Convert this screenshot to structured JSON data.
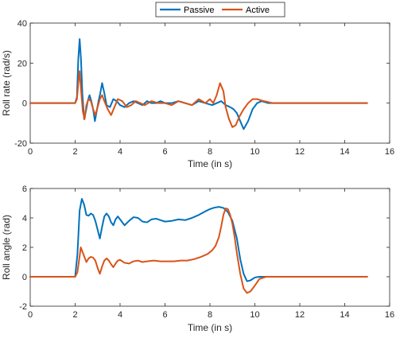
{
  "legend": {
    "placement": "top-center",
    "entries": [
      {
        "label": "Passive",
        "color": "#0072BD"
      },
      {
        "label": "Active",
        "color": "#D95319"
      }
    ]
  },
  "chart_data": [
    {
      "type": "line",
      "xlabel": "Time (in s)",
      "ylabel": "Roll rate (rad/s)",
      "xlim": [
        0,
        16
      ],
      "ylim": [
        -20,
        40
      ],
      "xticks": [
        0,
        2,
        4,
        6,
        8,
        10,
        12,
        14,
        16
      ],
      "yticks": [
        -20,
        0,
        20,
        40
      ],
      "grid": false,
      "series": [
        {
          "name": "Passive",
          "color": "#0072BD",
          "x": [
            0,
            2.0,
            2.08,
            2.14,
            2.2,
            2.26,
            2.32,
            2.4,
            2.48,
            2.56,
            2.64,
            2.72,
            2.8,
            2.88,
            2.96,
            3.04,
            3.12,
            3.2,
            3.3,
            3.4,
            3.55,
            3.7,
            3.85,
            4.0,
            4.2,
            4.4,
            4.6,
            4.8,
            5.0,
            5.2,
            5.4,
            5.6,
            5.8,
            6.0,
            6.3,
            6.6,
            6.9,
            7.2,
            7.5,
            7.8,
            8.1,
            8.3,
            8.5,
            8.7,
            8.9,
            9.05,
            9.2,
            9.35,
            9.5,
            9.7,
            9.9,
            10.1,
            10.3,
            10.6,
            11.0,
            12.0,
            13.0,
            14.0,
            15.0
          ],
          "y": [
            0,
            0,
            3,
            22,
            32,
            22,
            5,
            -8,
            -4,
            1,
            4,
            1,
            -3,
            -9,
            -4,
            1,
            5,
            10,
            5,
            -1,
            -2,
            2,
            1,
            -1,
            -2,
            0,
            1,
            0,
            -1,
            1,
            0,
            0,
            1,
            0,
            0,
            1,
            0,
            -1,
            1,
            0,
            -1,
            0,
            1,
            -1,
            -2,
            -3,
            -5,
            -9,
            -13,
            -9,
            -3,
            0,
            1,
            0,
            0,
            0,
            0,
            0,
            0
          ]
        },
        {
          "name": "Active",
          "color": "#D95319",
          "x": [
            0,
            2.0,
            2.08,
            2.14,
            2.2,
            2.26,
            2.34,
            2.42,
            2.5,
            2.6,
            2.7,
            2.8,
            2.9,
            3.0,
            3.1,
            3.2,
            3.3,
            3.45,
            3.6,
            3.75,
            3.9,
            4.1,
            4.3,
            4.5,
            4.7,
            4.9,
            5.1,
            5.4,
            5.7,
            6.0,
            6.3,
            6.6,
            6.9,
            7.2,
            7.5,
            7.8,
            8.0,
            8.15,
            8.3,
            8.45,
            8.6,
            8.7,
            8.85,
            9.0,
            9.15,
            9.3,
            9.5,
            9.7,
            9.9,
            10.1,
            10.4,
            10.8,
            11.5,
            12.5,
            13.5,
            15.0
          ],
          "y": [
            0,
            0,
            2,
            10,
            16,
            7,
            -4,
            -8,
            -1,
            2,
            1,
            -3,
            -6,
            -2,
            2,
            4,
            1,
            -3,
            -6,
            -2,
            2,
            1,
            -2,
            -1,
            1,
            0,
            -1,
            1,
            0,
            0,
            -1,
            1,
            0,
            -1,
            2,
            0,
            2,
            0,
            4,
            10,
            6,
            -2,
            -8,
            -12,
            -11,
            -7,
            -3,
            0,
            2,
            2,
            1,
            0,
            0,
            0,
            0,
            0
          ]
        }
      ]
    },
    {
      "type": "line",
      "xlabel": "Time (in s)",
      "ylabel": "Roll angle (rad)",
      "xlim": [
        0,
        16
      ],
      "ylim": [
        -2,
        6
      ],
      "xticks": [
        0,
        2,
        4,
        6,
        8,
        10,
        12,
        14,
        16
      ],
      "yticks": [
        -2,
        0,
        2,
        4,
        6
      ],
      "grid": false,
      "series": [
        {
          "name": "Passive",
          "color": "#0072BD",
          "x": [
            0,
            2.0,
            2.1,
            2.2,
            2.3,
            2.4,
            2.5,
            2.6,
            2.7,
            2.8,
            2.9,
            3.0,
            3.1,
            3.2,
            3.3,
            3.4,
            3.5,
            3.6,
            3.7,
            3.8,
            3.9,
            4.0,
            4.2,
            4.4,
            4.6,
            4.8,
            5.0,
            5.2,
            5.4,
            5.6,
            5.8,
            6.0,
            6.3,
            6.6,
            6.9,
            7.2,
            7.5,
            7.8,
            8.0,
            8.2,
            8.4,
            8.6,
            8.8,
            9.0,
            9.2,
            9.35,
            9.5,
            9.65,
            9.8,
            10.0,
            10.2,
            10.5,
            11.0,
            12.0,
            13.0,
            14.0,
            15.0
          ],
          "y": [
            0,
            0,
            1.5,
            4.5,
            5.3,
            4.9,
            4.2,
            4.15,
            4.3,
            4.2,
            3.8,
            3.2,
            2.6,
            3.4,
            4.1,
            4.3,
            4.1,
            3.7,
            3.5,
            3.9,
            4.1,
            3.9,
            3.5,
            3.8,
            4.05,
            4.0,
            3.75,
            3.7,
            3.9,
            3.95,
            3.85,
            3.75,
            3.8,
            3.9,
            3.85,
            4.0,
            4.2,
            4.45,
            4.6,
            4.7,
            4.75,
            4.68,
            4.4,
            3.8,
            2.6,
            1.2,
            0.2,
            -0.3,
            -0.25,
            -0.05,
            0,
            0,
            0,
            0,
            0,
            0,
            0
          ]
        },
        {
          "name": "Active",
          "color": "#D95319",
          "x": [
            0,
            2.0,
            2.1,
            2.2,
            2.25,
            2.35,
            2.5,
            2.6,
            2.7,
            2.8,
            2.9,
            3.0,
            3.1,
            3.2,
            3.3,
            3.4,
            3.5,
            3.6,
            3.7,
            3.8,
            3.9,
            4.0,
            4.2,
            4.4,
            4.6,
            4.8,
            5.0,
            5.2,
            5.5,
            5.8,
            6.1,
            6.4,
            6.7,
            7.0,
            7.3,
            7.6,
            7.9,
            8.1,
            8.25,
            8.4,
            8.5,
            8.6,
            8.7,
            8.8,
            8.9,
            9.0,
            9.1,
            9.2,
            9.35,
            9.5,
            9.65,
            9.8,
            10.0,
            10.2,
            10.5,
            11.0,
            12.0,
            13.0,
            14.0,
            15.0
          ],
          "y": [
            0,
            0,
            0.3,
            1.4,
            2.0,
            1.6,
            1.0,
            1.25,
            1.35,
            1.3,
            1.1,
            0.6,
            0.2,
            0.7,
            1.1,
            1.25,
            1.1,
            0.85,
            0.65,
            0.9,
            1.1,
            1.15,
            0.95,
            0.9,
            1.05,
            1.1,
            1.0,
            1.05,
            1.1,
            1.05,
            1.05,
            1.05,
            1.1,
            1.1,
            1.2,
            1.35,
            1.55,
            1.8,
            2.1,
            2.7,
            3.4,
            4.2,
            4.65,
            4.6,
            4.2,
            3.6,
            2.7,
            1.6,
            0.2,
            -0.8,
            -1.1,
            -1.0,
            -0.6,
            -0.15,
            0,
            0,
            0,
            0,
            0,
            0
          ]
        }
      ]
    }
  ]
}
